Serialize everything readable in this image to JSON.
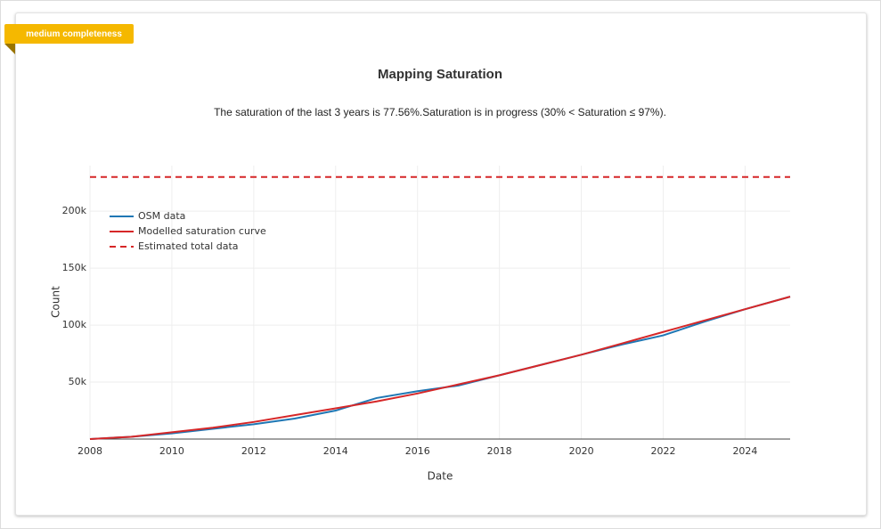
{
  "badge": "medium completeness",
  "chart_data": {
    "type": "line",
    "title": "Mapping Saturation",
    "subtitle": "The saturation of the last 3 years is 77.56%.Saturation is in progress (30% < Saturation ≤ 97%).",
    "x_label": "Date",
    "y_label": "Count",
    "x": [
      2008,
      2009,
      2010,
      2011,
      2012,
      2013,
      2014,
      2015,
      2016,
      2017,
      2018,
      2019,
      2020,
      2021,
      2022,
      2023,
      2024,
      2025.1
    ],
    "series": [
      {
        "name": "OSM data",
        "color": "#1f77b4",
        "values": [
          0,
          2000,
          5000,
          9000,
          13000,
          18000,
          25000,
          36000,
          42000,
          47000,
          56000,
          65000,
          74000,
          83000,
          91000,
          103000,
          114000,
          125000
        ]
      },
      {
        "name": "Modelled saturation curve",
        "color": "#d62728",
        "values": [
          0,
          2000,
          6000,
          10000,
          15000,
          21000,
          27000,
          33000,
          40000,
          48000,
          56000,
          65000,
          74000,
          84000,
          94000,
          104000,
          114000,
          125000
        ]
      }
    ],
    "hlines": [
      {
        "name": "Estimated total data",
        "color": "#d62728",
        "value": 230000
      }
    ],
    "xlim": [
      2008,
      2025.1
    ],
    "ylim": [
      0,
      240000
    ],
    "xticks": [
      2008,
      2010,
      2012,
      2014,
      2016,
      2018,
      2020,
      2022,
      2024
    ],
    "yticks": [
      {
        "value": 50000,
        "label": "50k"
      },
      {
        "value": 100000,
        "label": "100k"
      },
      {
        "value": 150000,
        "label": "150k"
      },
      {
        "value": 200000,
        "label": "200k"
      }
    ],
    "grid": true,
    "legend": "top-left"
  }
}
